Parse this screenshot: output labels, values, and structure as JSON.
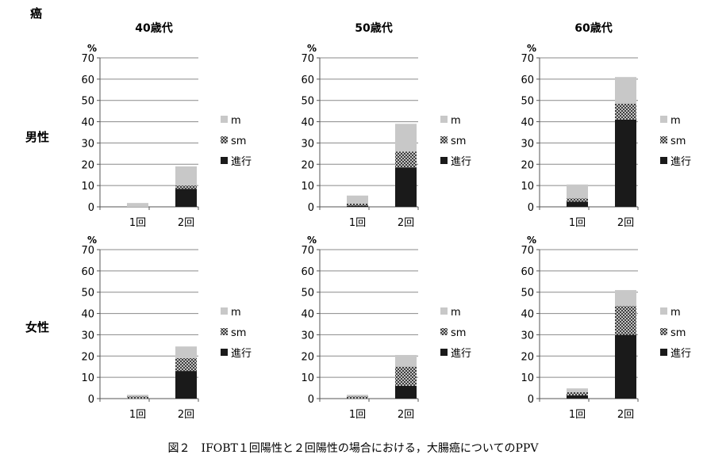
{
  "corner_label": "癌",
  "row_labels": [
    "男性",
    "女性"
  ],
  "col_titles": [
    "40歳代",
    "50歳代",
    "60歳代"
  ],
  "y_unit": "%",
  "legend": [
    {
      "label": "m",
      "color": "#c8c8c8",
      "pattern": "solid"
    },
    {
      "label": "sm",
      "color": "#555555",
      "pattern": "crosshatch"
    },
    {
      "label": "進行",
      "color": "#1a1a1a",
      "pattern": "solid"
    }
  ],
  "caption": "図２　IFOBT１回陽性と２回陽性の場合における，大腸癌についてのPPV",
  "chart_data": [
    {
      "type": "bar",
      "stacked": true,
      "row": "男性",
      "title": "40歳代",
      "categories": [
        "1回",
        "2回"
      ],
      "ylim": [
        0,
        70
      ],
      "yticks": [
        0,
        10,
        20,
        30,
        40,
        50,
        60,
        70
      ],
      "series": [
        {
          "name": "進行",
          "values": [
            0,
            8.5
          ]
        },
        {
          "name": "sm",
          "values": [
            0,
            1.5
          ]
        },
        {
          "name": "m",
          "values": [
            1.8,
            9
          ]
        }
      ]
    },
    {
      "type": "bar",
      "stacked": true,
      "row": "男性",
      "title": "50歳代",
      "categories": [
        "1回",
        "2回"
      ],
      "ylim": [
        0,
        70
      ],
      "yticks": [
        0,
        10,
        20,
        30,
        40,
        50,
        60,
        70
      ],
      "series": [
        {
          "name": "進行",
          "values": [
            0.5,
            18.5
          ]
        },
        {
          "name": "sm",
          "values": [
            1,
            7.5
          ]
        },
        {
          "name": "m",
          "values": [
            3.8,
            13
          ]
        }
      ]
    },
    {
      "type": "bar",
      "stacked": true,
      "row": "男性",
      "title": "60歳代",
      "categories": [
        "1回",
        "2回"
      ],
      "ylim": [
        0,
        70
      ],
      "yticks": [
        0,
        10,
        20,
        30,
        40,
        50,
        60,
        70
      ],
      "series": [
        {
          "name": "進行",
          "values": [
            2.5,
            41
          ]
        },
        {
          "name": "sm",
          "values": [
            1.5,
            7.5
          ]
        },
        {
          "name": "m",
          "values": [
            6.5,
            12.5
          ]
        }
      ]
    },
    {
      "type": "bar",
      "stacked": true,
      "row": "女性",
      "title": "40歳代",
      "categories": [
        "1回",
        "2回"
      ],
      "ylim": [
        0,
        70
      ],
      "yticks": [
        0,
        10,
        20,
        30,
        40,
        50,
        60,
        70
      ],
      "series": [
        {
          "name": "進行",
          "values": [
            0,
            13
          ]
        },
        {
          "name": "sm",
          "values": [
            1,
            6
          ]
        },
        {
          "name": "m",
          "values": [
            0.8,
            5.5
          ]
        }
      ]
    },
    {
      "type": "bar",
      "stacked": true,
      "row": "女性",
      "title": "50歳代",
      "categories": [
        "1回",
        "2回"
      ],
      "ylim": [
        0,
        70
      ],
      "yticks": [
        0,
        10,
        20,
        30,
        40,
        50,
        60,
        70
      ],
      "series": [
        {
          "name": "進行",
          "values": [
            0,
            6
          ]
        },
        {
          "name": "sm",
          "values": [
            1,
            9
          ]
        },
        {
          "name": "m",
          "values": [
            0.8,
            5.5
          ]
        }
      ]
    },
    {
      "type": "bar",
      "stacked": true,
      "row": "女性",
      "title": "60歳代",
      "categories": [
        "1回",
        "2回"
      ],
      "ylim": [
        0,
        70
      ],
      "yticks": [
        0,
        10,
        20,
        30,
        40,
        50,
        60,
        70
      ],
      "series": [
        {
          "name": "進行",
          "values": [
            1.5,
            30
          ]
        },
        {
          "name": "sm",
          "values": [
            1.5,
            13.5
          ]
        },
        {
          "name": "m",
          "values": [
            1.8,
            7.5
          ]
        }
      ]
    }
  ]
}
